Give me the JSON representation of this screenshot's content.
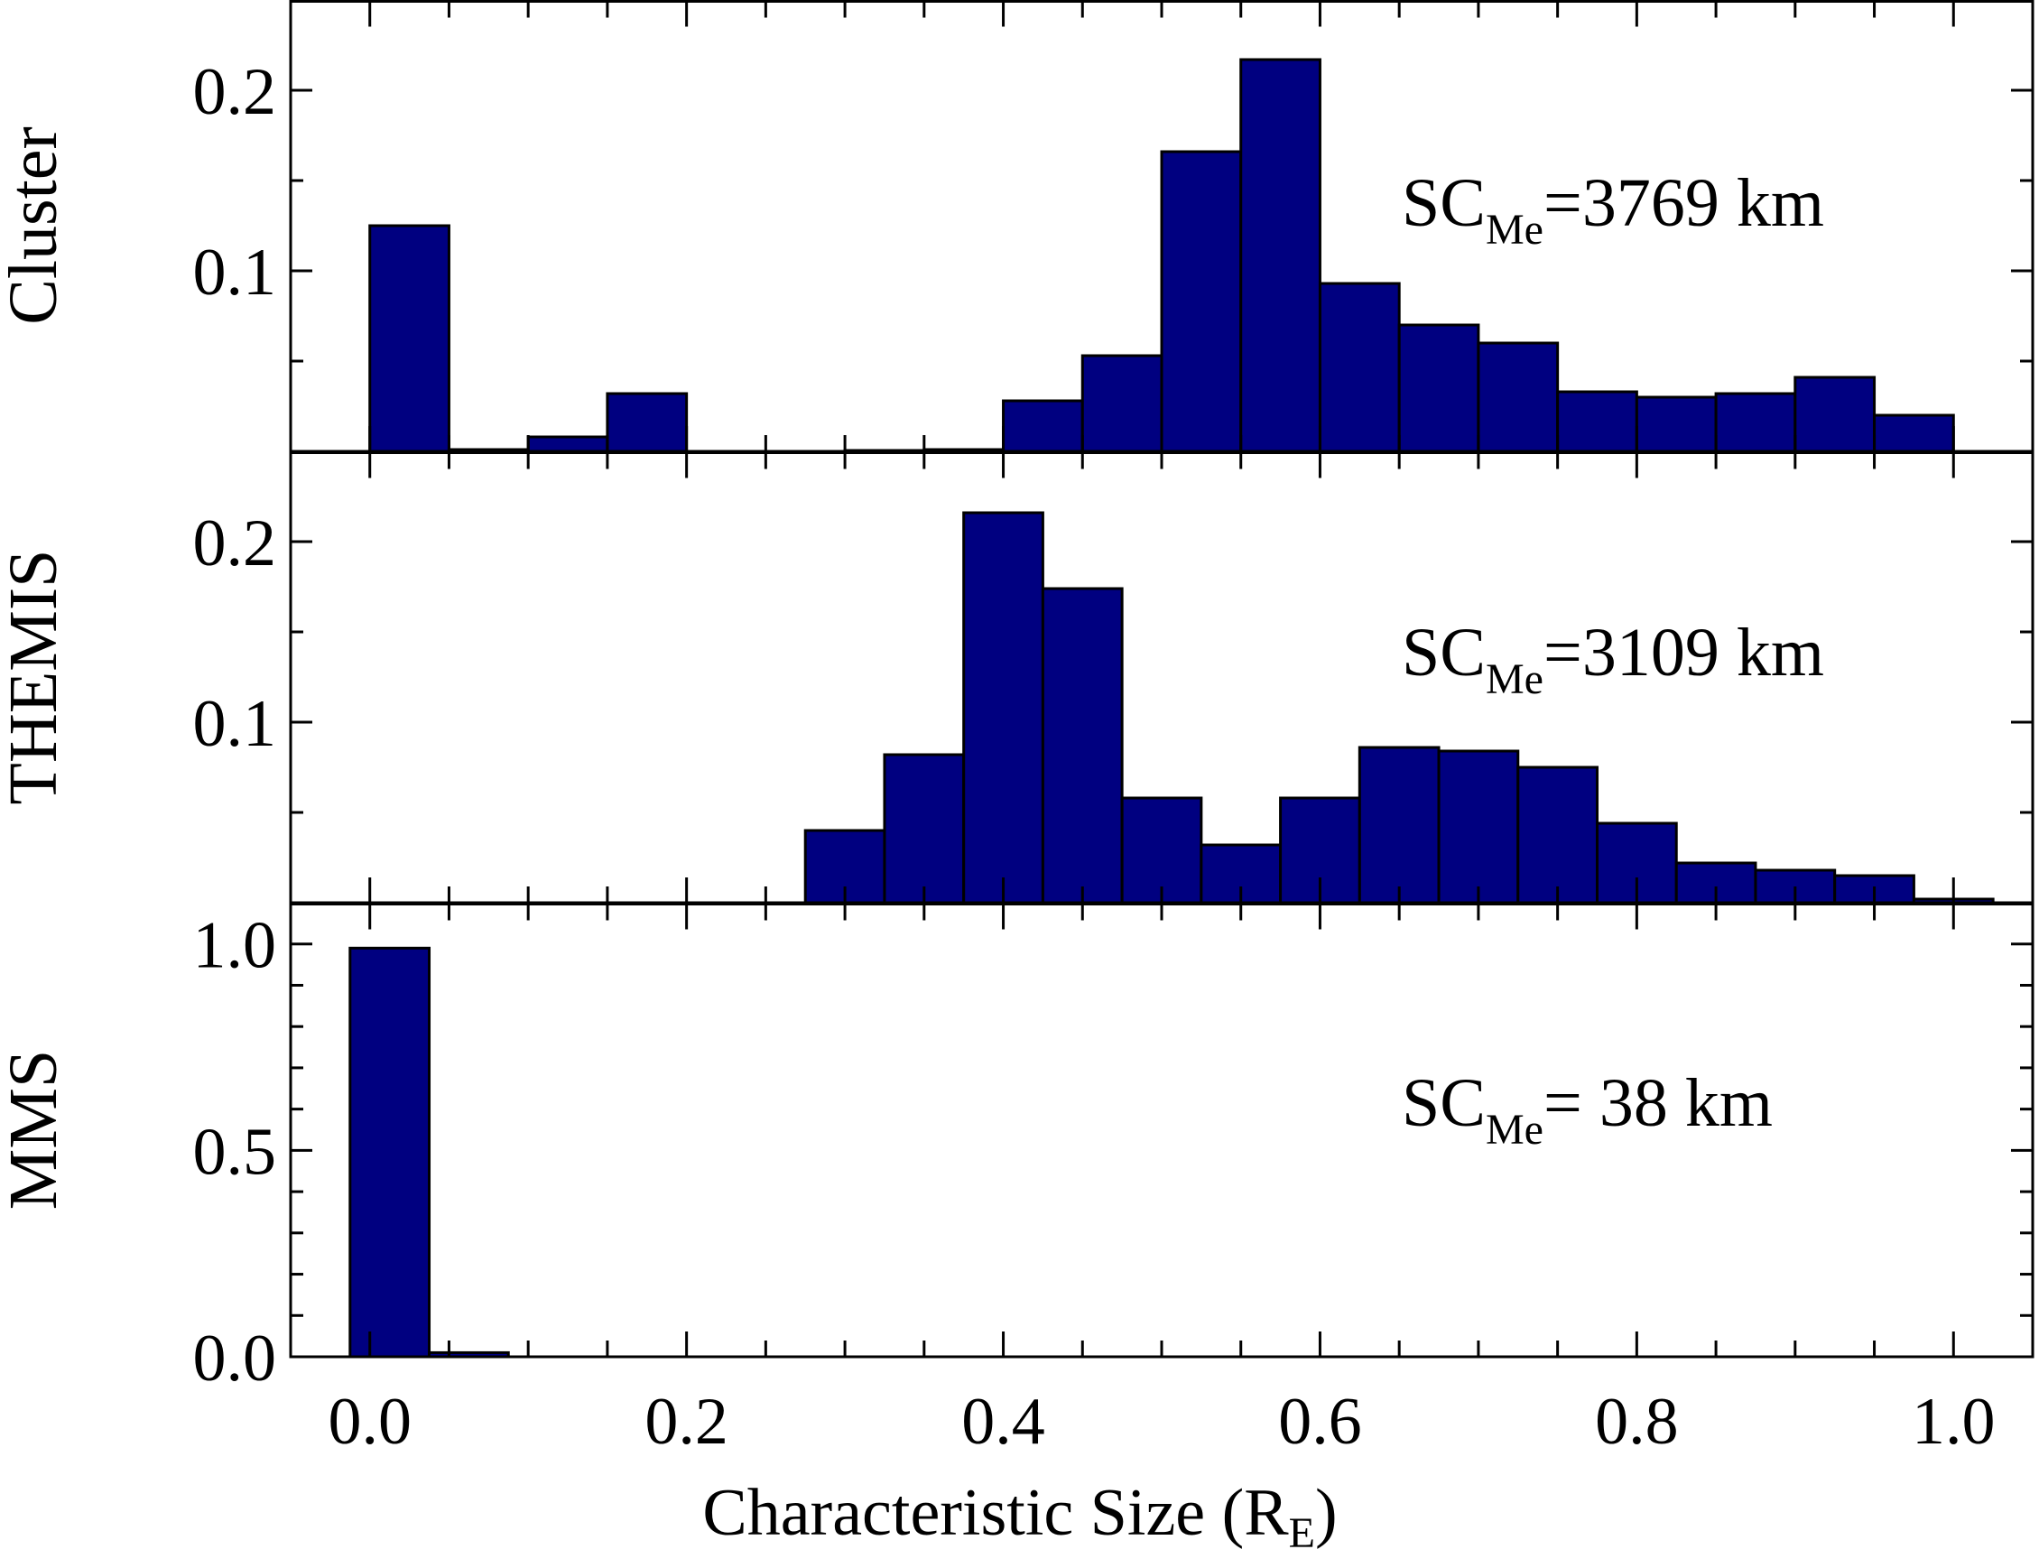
{
  "chart_data": {
    "type": "bar",
    "xlabel": {
      "text": "Characteristic Size (R",
      "sub": "E",
      "close": ")"
    },
    "xlim": [
      -0.05,
      1.05
    ],
    "x_ticks": [
      "0.0",
      "0.2",
      "0.4",
      "0.6",
      "0.8",
      "1.0"
    ],
    "x_tick_values": [
      0,
      0.2,
      0.4,
      0.6,
      0.8,
      1.0
    ],
    "grid": false,
    "bar_color": "#000080",
    "edge_color": "#000000",
    "panels": [
      {
        "ylabel": "Cluster",
        "ylim": [
          0,
          0.25
        ],
        "y_ticks": [
          {
            "label": "0.1",
            "value": 0.1
          },
          {
            "label": "0.2",
            "value": 0.2
          }
        ],
        "y_minor": [
          0.05,
          0.15
        ],
        "annotation": {
          "prefix": "SC",
          "sub": "Me",
          "text": "=3769 km"
        },
        "bar_width": 0.05,
        "bins": [
          {
            "x": 0.0,
            "value": 0.125
          },
          {
            "x": 0.05,
            "value": 0.001
          },
          {
            "x": 0.1,
            "value": 0.008
          },
          {
            "x": 0.15,
            "value": 0.032
          },
          {
            "x": 0.2,
            "value": 0.0
          },
          {
            "x": 0.25,
            "value": 0.0
          },
          {
            "x": 0.3,
            "value": 0.0005
          },
          {
            "x": 0.35,
            "value": 0.001
          },
          {
            "x": 0.4,
            "value": 0.028
          },
          {
            "x": 0.45,
            "value": 0.053
          },
          {
            "x": 0.5,
            "value": 0.166
          },
          {
            "x": 0.55,
            "value": 0.217
          },
          {
            "x": 0.6,
            "value": 0.093
          },
          {
            "x": 0.65,
            "value": 0.07
          },
          {
            "x": 0.7,
            "value": 0.06
          },
          {
            "x": 0.75,
            "value": 0.033
          },
          {
            "x": 0.8,
            "value": 0.03
          },
          {
            "x": 0.85,
            "value": 0.032
          },
          {
            "x": 0.9,
            "value": 0.041
          },
          {
            "x": 0.95,
            "value": 0.02
          }
        ]
      },
      {
        "ylabel": "THEMIS",
        "ylim": [
          0,
          0.25
        ],
        "y_ticks": [
          {
            "label": "0.1",
            "value": 0.1
          },
          {
            "label": "0.2",
            "value": 0.2
          }
        ],
        "y_minor": [
          0.05,
          0.15
        ],
        "annotation": {
          "prefix": "SC",
          "sub": "Me",
          "text": "=3109 km"
        },
        "bar_width": 0.05,
        "bins": [
          {
            "x": 0.275,
            "value": 0.04
          },
          {
            "x": 0.325,
            "value": 0.082
          },
          {
            "x": 0.375,
            "value": 0.216
          },
          {
            "x": 0.425,
            "value": 0.174
          },
          {
            "x": 0.475,
            "value": 0.058
          },
          {
            "x": 0.525,
            "value": 0.032
          },
          {
            "x": 0.575,
            "value": 0.058
          },
          {
            "x": 0.625,
            "value": 0.086
          },
          {
            "x": 0.675,
            "value": 0.084
          },
          {
            "x": 0.725,
            "value": 0.075
          },
          {
            "x": 0.775,
            "value": 0.044
          },
          {
            "x": 0.825,
            "value": 0.022
          },
          {
            "x": 0.875,
            "value": 0.018
          },
          {
            "x": 0.925,
            "value": 0.015
          },
          {
            "x": 0.975,
            "value": 0.002
          }
        ]
      },
      {
        "ylabel": "MMS",
        "ylim": [
          0,
          1.1
        ],
        "y_ticks": [
          {
            "label": "0.0",
            "value": 0.0
          },
          {
            "label": "0.5",
            "value": 0.5
          },
          {
            "label": "1.0",
            "value": 1.0
          }
        ],
        "y_minor": [
          0.1,
          0.2,
          0.3,
          0.4,
          0.6,
          0.7,
          0.8,
          0.9
        ],
        "annotation": {
          "prefix": "SC",
          "sub": "Me",
          "text": "=  38 km"
        },
        "bar_width": 0.05,
        "bins": [
          {
            "x": -0.0125,
            "value": 0.99
          },
          {
            "x": 0.0375,
            "value": 0.01
          }
        ]
      }
    ]
  }
}
